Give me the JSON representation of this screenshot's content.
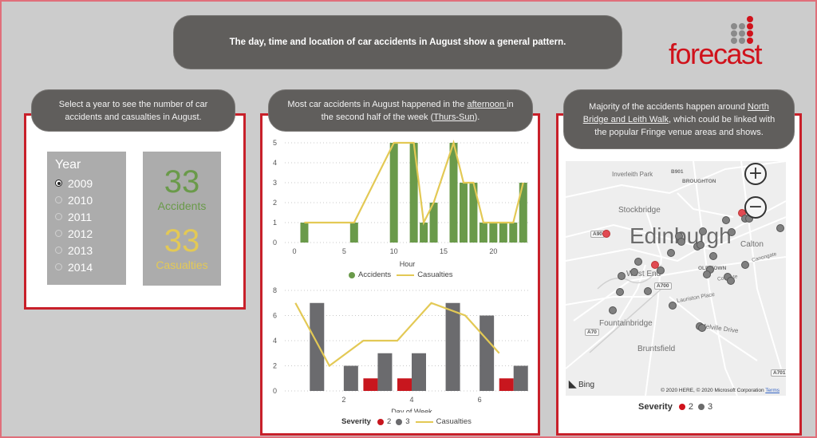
{
  "banner": {
    "text": "The day, time and location of car accidents in August show a general pattern."
  },
  "logo": {
    "text": "forecast",
    "brand_color": "#d0121b",
    "dot_gray": "#8a8a8a"
  },
  "panel_left": {
    "bubble_text": "Select a year to see the number of car accidents and casualties in August.",
    "slicer": {
      "title": "Year",
      "selected": "2009",
      "options": [
        "2009",
        "2010",
        "2011",
        "2012",
        "2013",
        "2014"
      ]
    },
    "kpi": {
      "accidents_value": "33",
      "accidents_label": "Accidents",
      "accidents_color": "#6a9a4a",
      "casualties_value": "33",
      "casualties_label": "Casualties",
      "casualties_color": "#e3c955"
    }
  },
  "panel_middle": {
    "bubble_line1_pre": "Most car accidents in August happened in the ",
    "bubble_line1_link": "afternoon ",
    "bubble_line1_post": "in",
    "bubble_line2_pre": "the second half of the week (",
    "bubble_line2_link": "Thurs-Sun",
    "bubble_line2_post": ")."
  },
  "panel_right": {
    "bubble_line1_pre": "Majority of the accidents happen around ",
    "bubble_line1_link": "North",
    "bubble_line2_link": "Bridge and Leith Walk",
    "bubble_line2_post": ", which could be linked with",
    "bubble_line3": "the popular Fringe venue areas and shows.",
    "map": {
      "city_label": "Edinburgh",
      "labels": [
        "Inverleith Park",
        "B901",
        "BROUGHTON",
        "Stockbridge",
        "A90",
        "Calton",
        "West End",
        "OLD TOWN",
        "A700",
        "Lauriston Place",
        "Fountainbridge",
        "A70",
        "Melville Drive",
        "Bruntsfield",
        "A701",
        "Canongate",
        "Cowgate",
        "Easter Road",
        "London Road",
        "ABB"
      ],
      "zoom_in": "+",
      "zoom_out": "−",
      "provider": "Bing",
      "copyright": "© 2020 HERE, © 2020 Microsoft Corporation",
      "terms_link": "Terms"
    },
    "legend": {
      "title": "Severity",
      "items": [
        {
          "label": "2",
          "color": "#d0121b"
        },
        {
          "label": "3",
          "color": "#6b6b6b"
        }
      ]
    }
  },
  "chart_data": [
    {
      "type": "bar+line",
      "title": "",
      "xlabel": "Hour",
      "ylabel": "",
      "ylim": [
        0,
        5
      ],
      "yticks": [
        0,
        1,
        2,
        3,
        4,
        5
      ],
      "xticks": [
        0,
        5,
        10,
        15,
        20
      ],
      "x": [
        1,
        6,
        10,
        12,
        13,
        14,
        16,
        17,
        18,
        19,
        20,
        21,
        22,
        23
      ],
      "series": [
        {
          "name": "Accidents",
          "type": "bar",
          "color": "#6a9a4a",
          "values": [
            1,
            1,
            5,
            5,
            1,
            2,
            5,
            3,
            3,
            1,
            1,
            1,
            1,
            3
          ]
        },
        {
          "name": "Casualties",
          "type": "line",
          "color": "#e3c955",
          "values": [
            1,
            1,
            5,
            5,
            1,
            2,
            5,
            3,
            3,
            1,
            1,
            1,
            1,
            3
          ]
        }
      ],
      "grid": true,
      "legend_position": "bottom"
    },
    {
      "type": "grouped-bar+line",
      "title": "",
      "xlabel": "Day of Week",
      "ylabel": "",
      "ylim": [
        0,
        8
      ],
      "yticks": [
        0,
        2,
        4,
        6,
        8
      ],
      "xticks": [
        2,
        4,
        6
      ],
      "categories": [
        1,
        2,
        3,
        4,
        5,
        6,
        7
      ],
      "legend_title": "Severity",
      "series": [
        {
          "name": "2",
          "type": "bar",
          "color": "#c8161e",
          "values": [
            0,
            0,
            1,
            1,
            0,
            0,
            1
          ]
        },
        {
          "name": "3",
          "type": "bar",
          "color": "#6b6b6e",
          "values": [
            7,
            2,
            3,
            3,
            7,
            6,
            2
          ]
        },
        {
          "name": "Casualties",
          "type": "line",
          "color": "#e3c955",
          "values": [
            7,
            2,
            4,
            4,
            7,
            6,
            3
          ]
        }
      ],
      "grid": true,
      "legend_position": "bottom"
    }
  ]
}
